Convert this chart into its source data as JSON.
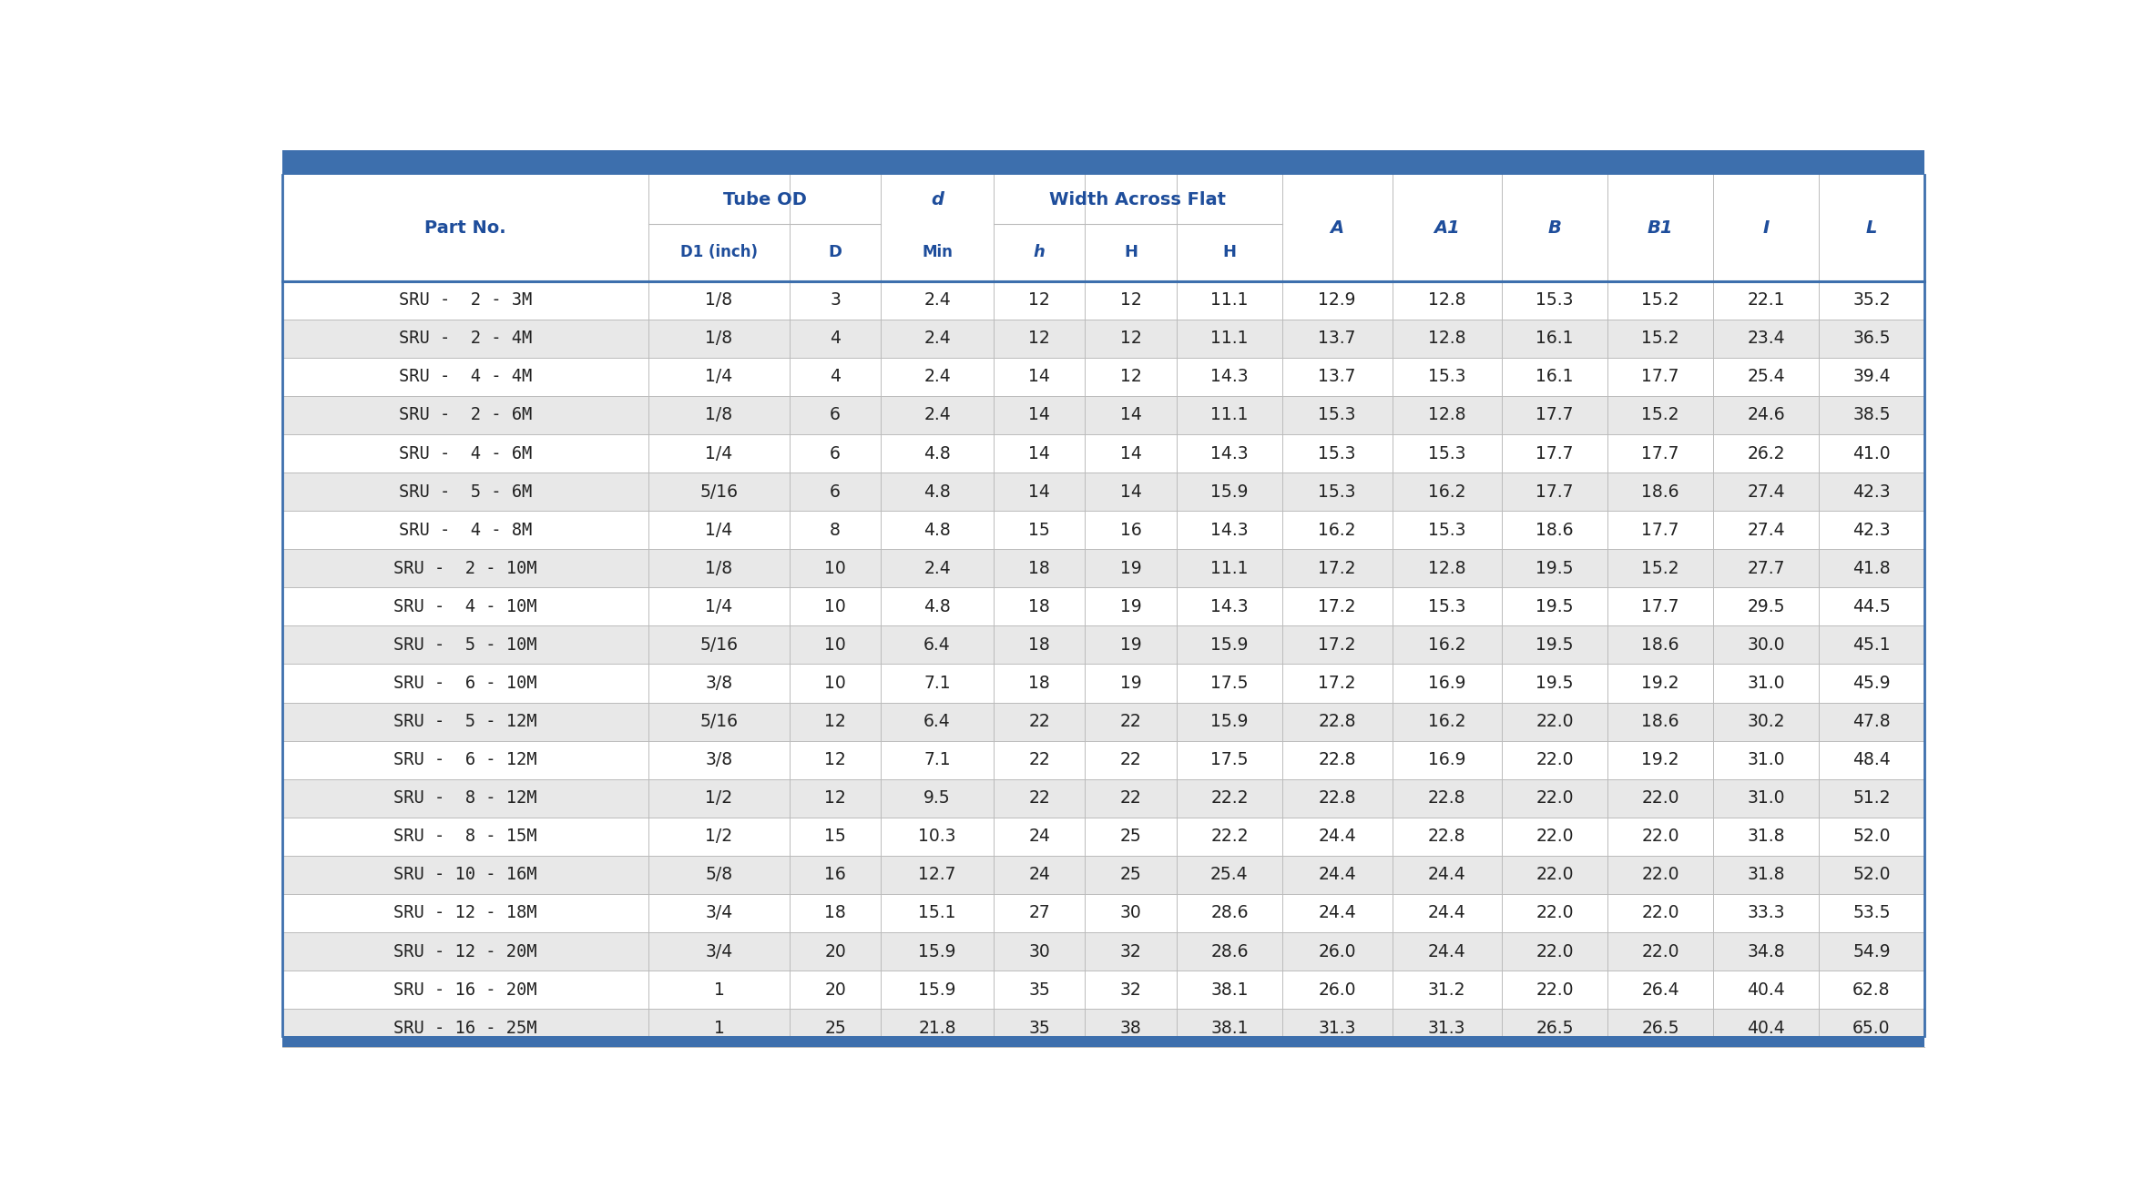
{
  "title_bar_color": "#3d6fad",
  "header_text_color": "#1e4d9b",
  "data_text_color": "#222222",
  "alt_row_color": "#e8e8e8",
  "white_row_color": "#ffffff",
  "border_color": "#3d6fad",
  "col_widths_raw": [
    2.6,
    1.0,
    0.65,
    0.8,
    0.65,
    0.65,
    0.75,
    0.78,
    0.78,
    0.75,
    0.75,
    0.75,
    0.75
  ],
  "rows": [
    [
      "SRU -  2 - 3M",
      "1/8",
      "3",
      "2.4",
      "12",
      "12",
      "11.1",
      "12.9",
      "12.8",
      "15.3",
      "15.2",
      "22.1",
      "35.2"
    ],
    [
      "SRU -  2 - 4M",
      "1/8",
      "4",
      "2.4",
      "12",
      "12",
      "11.1",
      "13.7",
      "12.8",
      "16.1",
      "15.2",
      "23.4",
      "36.5"
    ],
    [
      "SRU -  4 - 4M",
      "1/4",
      "4",
      "2.4",
      "14",
      "12",
      "14.3",
      "13.7",
      "15.3",
      "16.1",
      "17.7",
      "25.4",
      "39.4"
    ],
    [
      "SRU -  2 - 6M",
      "1/8",
      "6",
      "2.4",
      "14",
      "14",
      "11.1",
      "15.3",
      "12.8",
      "17.7",
      "15.2",
      "24.6",
      "38.5"
    ],
    [
      "SRU -  4 - 6M",
      "1/4",
      "6",
      "4.8",
      "14",
      "14",
      "14.3",
      "15.3",
      "15.3",
      "17.7",
      "17.7",
      "26.2",
      "41.0"
    ],
    [
      "SRU -  5 - 6M",
      "5/16",
      "6",
      "4.8",
      "14",
      "14",
      "15.9",
      "15.3",
      "16.2",
      "17.7",
      "18.6",
      "27.4",
      "42.3"
    ],
    [
      "SRU -  4 - 8M",
      "1/4",
      "8",
      "4.8",
      "15",
      "16",
      "14.3",
      "16.2",
      "15.3",
      "18.6",
      "17.7",
      "27.4",
      "42.3"
    ],
    [
      "SRU -  2 - 10M",
      "1/8",
      "10",
      "2.4",
      "18",
      "19",
      "11.1",
      "17.2",
      "12.8",
      "19.5",
      "15.2",
      "27.7",
      "41.8"
    ],
    [
      "SRU -  4 - 10M",
      "1/4",
      "10",
      "4.8",
      "18",
      "19",
      "14.3",
      "17.2",
      "15.3",
      "19.5",
      "17.7",
      "29.5",
      "44.5"
    ],
    [
      "SRU -  5 - 10M",
      "5/16",
      "10",
      "6.4",
      "18",
      "19",
      "15.9",
      "17.2",
      "16.2",
      "19.5",
      "18.6",
      "30.0",
      "45.1"
    ],
    [
      "SRU -  6 - 10M",
      "3/8",
      "10",
      "7.1",
      "18",
      "19",
      "17.5",
      "17.2",
      "16.9",
      "19.5",
      "19.2",
      "31.0",
      "45.9"
    ],
    [
      "SRU -  5 - 12M",
      "5/16",
      "12",
      "6.4",
      "22",
      "22",
      "15.9",
      "22.8",
      "16.2",
      "22.0",
      "18.6",
      "30.2",
      "47.8"
    ],
    [
      "SRU -  6 - 12M",
      "3/8",
      "12",
      "7.1",
      "22",
      "22",
      "17.5",
      "22.8",
      "16.9",
      "22.0",
      "19.2",
      "31.0",
      "48.4"
    ],
    [
      "SRU -  8 - 12M",
      "1/2",
      "12",
      "9.5",
      "22",
      "22",
      "22.2",
      "22.8",
      "22.8",
      "22.0",
      "22.0",
      "31.0",
      "51.2"
    ],
    [
      "SRU -  8 - 15M",
      "1/2",
      "15",
      "10.3",
      "24",
      "25",
      "22.2",
      "24.4",
      "22.8",
      "22.0",
      "22.0",
      "31.8",
      "52.0"
    ],
    [
      "SRU - 10 - 16M",
      "5/8",
      "16",
      "12.7",
      "24",
      "25",
      "25.4",
      "24.4",
      "24.4",
      "22.0",
      "22.0",
      "31.8",
      "52.0"
    ],
    [
      "SRU - 12 - 18M",
      "3/4",
      "18",
      "15.1",
      "27",
      "30",
      "28.6",
      "24.4",
      "24.4",
      "22.0",
      "22.0",
      "33.3",
      "53.5"
    ],
    [
      "SRU - 12 - 20M",
      "3/4",
      "20",
      "15.9",
      "30",
      "32",
      "28.6",
      "26.0",
      "24.4",
      "22.0",
      "22.0",
      "34.8",
      "54.9"
    ],
    [
      "SRU - 16 - 20M",
      "1",
      "20",
      "15.9",
      "35",
      "32",
      "38.1",
      "26.0",
      "31.2",
      "22.0",
      "26.4",
      "40.4",
      "62.8"
    ],
    [
      "SRU - 16 - 25M",
      "1",
      "25",
      "21.8",
      "35",
      "38",
      "38.1",
      "31.3",
      "31.3",
      "26.5",
      "26.5",
      "40.4",
      "65.0"
    ]
  ]
}
